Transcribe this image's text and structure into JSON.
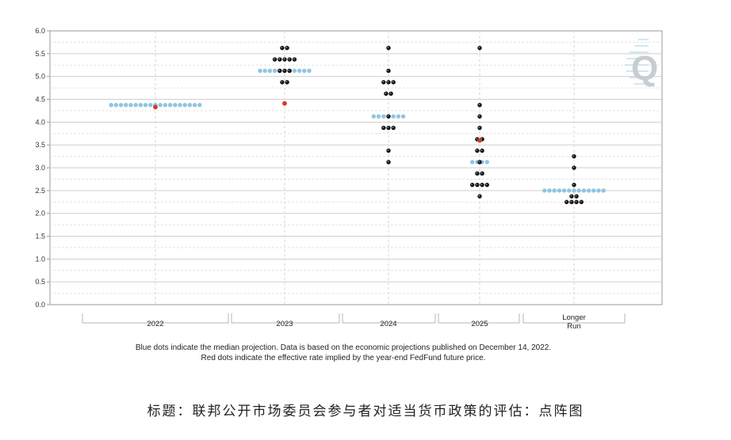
{
  "caption": "标题：联邦公开市场委员会参与者对适当货币政策的评估：点阵图",
  "footnote": {
    "line1": "Blue dots indicate the median projection. Data is based on the economic projections published on December 14, 2022.",
    "line2": "Red dots indicate the effective rate implied by the year-end FedFund future price."
  },
  "watermark": {
    "text": "Q"
  },
  "colors": {
    "participant": "#111111",
    "median": "#8fc6e2",
    "market": "#d9372b",
    "grid": "#cfcfcf",
    "axis": "#9a9a9a"
  },
  "chart_data": {
    "type": "scatter",
    "categories": [
      "2022",
      "2023",
      "2024",
      "2025",
      "Longer Run"
    ],
    "category_labels": [
      [
        "2022"
      ],
      [
        "2023"
      ],
      [
        "2024"
      ],
      [
        "2025"
      ],
      [
        "Longer",
        "Run"
      ]
    ],
    "ylim": [
      0,
      6
    ],
    "yticks": [
      "0.0",
      "0.5",
      "1.0",
      "1.5",
      "2.0",
      "2.5",
      "3.0",
      "3.5",
      "4.0",
      "4.5",
      "5.0",
      "5.5",
      "6.0"
    ],
    "grid": true,
    "series": [
      {
        "key": "participants",
        "points": [
          {
            "category": "2023",
            "y": 5.625,
            "count": 2
          },
          {
            "category": "2023",
            "y": 5.375,
            "count": 5
          },
          {
            "category": "2023",
            "y": 5.125,
            "count": 3
          },
          {
            "category": "2023",
            "y": 4.875,
            "count": 2
          },
          {
            "category": "2024",
            "y": 5.625,
            "count": 1
          },
          {
            "category": "2024",
            "y": 5.125,
            "count": 1
          },
          {
            "category": "2024",
            "y": 4.875,
            "count": 3
          },
          {
            "category": "2024",
            "y": 4.625,
            "count": 2
          },
          {
            "category": "2024",
            "y": 4.125,
            "count": 1
          },
          {
            "category": "2024",
            "y": 3.875,
            "count": 3
          },
          {
            "category": "2024",
            "y": 3.375,
            "count": 1
          },
          {
            "category": "2024",
            "y": 3.125,
            "count": 1
          },
          {
            "category": "2025",
            "y": 5.625,
            "count": 1
          },
          {
            "category": "2025",
            "y": 4.375,
            "count": 1
          },
          {
            "category": "2025",
            "y": 4.125,
            "count": 1
          },
          {
            "category": "2025",
            "y": 3.875,
            "count": 1
          },
          {
            "category": "2025",
            "y": 3.625,
            "count": 2
          },
          {
            "category": "2025",
            "y": 3.375,
            "count": 2
          },
          {
            "category": "2025",
            "y": 3.125,
            "count": 1
          },
          {
            "category": "2025",
            "y": 2.875,
            "count": 2
          },
          {
            "category": "2025",
            "y": 2.625,
            "count": 4
          },
          {
            "category": "2025",
            "y": 2.375,
            "count": 1
          },
          {
            "category": "Longer Run",
            "y": 3.25,
            "count": 1
          },
          {
            "category": "Longer Run",
            "y": 3.0,
            "count": 1
          },
          {
            "category": "Longer Run",
            "y": 2.625,
            "count": 1
          },
          {
            "category": "Longer Run",
            "y": 2.375,
            "count": 2
          },
          {
            "category": "Longer Run",
            "y": 2.25,
            "count": 4
          }
        ]
      },
      {
        "key": "median",
        "points": [
          {
            "category": "2022",
            "y": 4.375,
            "count": 19
          },
          {
            "category": "2023",
            "y": 5.125,
            "count": 11
          },
          {
            "category": "2024",
            "y": 4.125,
            "count": 7
          },
          {
            "category": "2025",
            "y": 3.125,
            "count": 4
          },
          {
            "category": "Longer Run",
            "y": 2.5,
            "count": 13
          }
        ]
      },
      {
        "key": "market",
        "points": [
          {
            "category": "2022",
            "y": 4.33
          },
          {
            "category": "2023",
            "y": 4.41
          },
          {
            "category": "2025",
            "y": 3.6
          }
        ]
      }
    ]
  }
}
